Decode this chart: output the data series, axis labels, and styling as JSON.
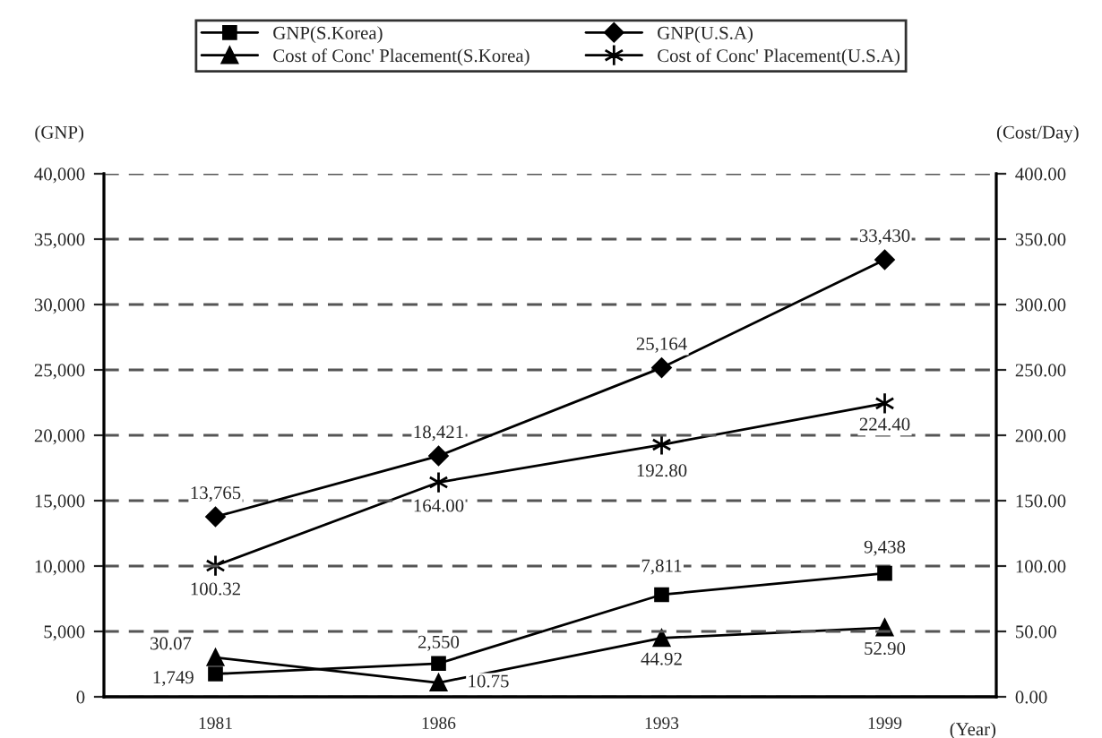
{
  "chart_data": {
    "type": "line",
    "xlabel": "(Year)",
    "ylabel": "(GNP)",
    "y2label": "(Cost/Day)",
    "categories": [
      "1981",
      "1986",
      "1993",
      "1999"
    ],
    "series": [
      {
        "name": "GNP(S.Korea)",
        "color": "#000000",
        "marker": "square",
        "values": [
          1749,
          2550,
          7811,
          9438
        ],
        "value_labels": [
          "1,749",
          "2,550",
          "7,811",
          "9,438"
        ]
      },
      {
        "name": "GNP(U.S.A)",
        "color": "#000000",
        "marker": "diamond",
        "values": [
          13765,
          18421,
          25164,
          33430
        ],
        "value_labels": [
          "13,765",
          "18,421",
          "25,164",
          "33,430"
        ]
      },
      {
        "name": "Cost of Conc' Placement(S.Korea)",
        "color": "#000000",
        "marker": "triangle",
        "axis": "y2",
        "values": [
          30.07,
          10.75,
          44.92,
          52.9
        ],
        "value_labels": [
          "30.07",
          "10.75",
          "44.92",
          "52.90"
        ]
      },
      {
        "name": "Cost of Conc' Placement(U.S.A)",
        "color": "#000000",
        "marker": "cross",
        "axis": "y2",
        "values": [
          100.32,
          164.0,
          192.8,
          224.4
        ],
        "value_labels": [
          "100.32",
          "164.00",
          "192.80",
          "224.40"
        ]
      }
    ],
    "ylim": [
      0,
      40000
    ],
    "yticks": [
      {
        "value": 0,
        "label": "0"
      },
      {
        "value": 5000,
        "label": "5,000"
      },
      {
        "value": 10000,
        "label": "10,000"
      },
      {
        "value": 15000,
        "label": "15,000"
      },
      {
        "value": 20000,
        "label": "20,000"
      },
      {
        "value": 25000,
        "label": "25,000"
      },
      {
        "value": 30000,
        "label": "30,000"
      },
      {
        "value": 35000,
        "label": "35,000"
      },
      {
        "value": 40000,
        "label": "40,000"
      }
    ],
    "y2lim": [
      0,
      400
    ],
    "y2ticks": [
      {
        "value": 0,
        "label": "0.00"
      },
      {
        "value": 50,
        "label": "50.00"
      },
      {
        "value": 100,
        "label": "100.00"
      },
      {
        "value": 150,
        "label": "150.00"
      },
      {
        "value": 200,
        "label": "200.00"
      },
      {
        "value": 250,
        "label": "250.00"
      },
      {
        "value": 300,
        "label": "300.00"
      },
      {
        "value": 350,
        "label": "350.00"
      },
      {
        "value": 400,
        "label": "400.00"
      }
    ],
    "grid": "y",
    "line_style": "solid",
    "legend": "top"
  }
}
